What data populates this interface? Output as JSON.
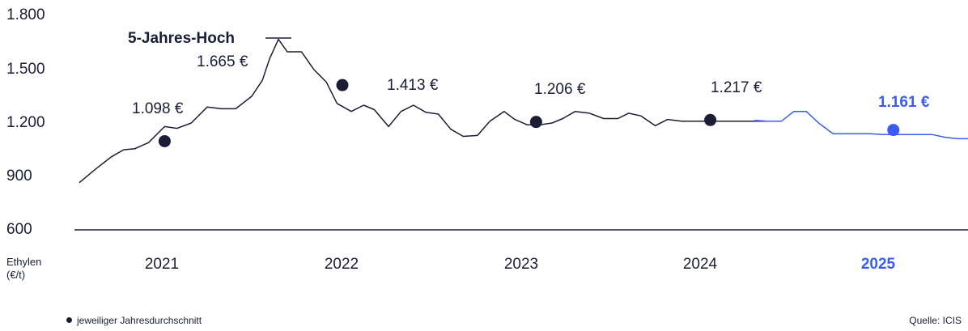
{
  "chart_data": {
    "type": "line",
    "y_ticks": [
      "1.800",
      "1.500",
      "1.200",
      "900",
      "600"
    ],
    "y_tick_values": [
      1800,
      1500,
      1200,
      900,
      600
    ],
    "ylim": [
      600,
      1800
    ],
    "y_unit_label_line1": "Ethylen",
    "y_unit_label_line2": "(€/t)",
    "x_ticks": [
      "2021",
      "2022",
      "2023",
      "2024",
      "2025"
    ],
    "xlim": [
      2020.55,
      2025.55
    ],
    "series": [
      {
        "color": "#1b1d36",
        "x": [
          2020.55,
          2020.64,
          2020.73,
          2020.8,
          2020.86,
          2020.94,
          2021.03,
          2021.1,
          2021.18,
          2021.27,
          2021.35,
          2021.43,
          2021.52,
          2021.58,
          2021.62,
          2021.67,
          2021.72,
          2021.8,
          2021.87,
          2021.94,
          2022.0,
          2022.08,
          2022.15,
          2022.21,
          2022.29,
          2022.36,
          2022.43,
          2022.5,
          2022.57,
          2022.64,
          2022.71,
          2022.79,
          2022.86,
          2022.94,
          2023.0,
          2023.07,
          2023.14,
          2023.21,
          2023.27,
          2023.34,
          2023.42,
          2023.5,
          2023.58,
          2023.64,
          2023.71,
          2023.79,
          2023.86,
          2023.94,
          2024.01,
          2024.07,
          2024.14,
          2024.21,
          2024.28,
          2024.35,
          2024.42
        ],
        "y": [
          865,
          940,
          1010,
          1050,
          1055,
          1090,
          1180,
          1170,
          1200,
          1290,
          1280,
          1280,
          1350,
          1440,
          1560,
          1670,
          1600,
          1600,
          1500,
          1430,
          1310,
          1265,
          1300,
          1275,
          1180,
          1265,
          1300,
          1260,
          1250,
          1165,
          1125,
          1130,
          1210,
          1265,
          1220,
          1190,
          1190,
          1200,
          1225,
          1265,
          1255,
          1225,
          1225,
          1255,
          1240,
          1185,
          1220,
          1210,
          1210,
          1210,
          1210,
          1210,
          1210,
          1210,
          1210
        ]
      },
      {
        "color": "#3a5cf0",
        "x": [
          2024.35,
          2024.42,
          2024.5,
          2024.57,
          2024.64,
          2024.71,
          2024.79,
          2024.86,
          2024.94,
          2025.0,
          2025.07,
          2025.14,
          2025.21,
          2025.28,
          2025.35,
          2025.42,
          2025.49,
          2025.55
        ],
        "y": [
          1215,
          1210,
          1210,
          1265,
          1265,
          1200,
          1140,
          1140,
          1140,
          1140,
          1135,
          1135,
          1135,
          1135,
          1135,
          1120,
          1112,
          1112
        ]
      }
    ],
    "averages": [
      {
        "x": 2021.03,
        "y": 1098,
        "label": "1.098 €",
        "color": "#1b1d36"
      },
      {
        "x": 2022.03,
        "y": 1413,
        "label": "1.413 €",
        "color": "#1b1d36"
      },
      {
        "x": 2023.12,
        "y": 1206,
        "label": "1.206 €",
        "color": "#1b1d36"
      },
      {
        "x": 2024.1,
        "y": 1217,
        "label": "1.217 €",
        "color": "#1b1d36"
      },
      {
        "x": 2025.13,
        "y": 1161,
        "label": "1.161 €",
        "color": "#3a5cf0"
      }
    ],
    "peak": {
      "x": 2021.67,
      "y": 1665,
      "title": "5-Jahres-Hoch",
      "label": "1.665 €"
    },
    "legend": "jeweiliger Jahresdurchschnitt",
    "source": "Quelle: ICIS",
    "grid": false
  }
}
